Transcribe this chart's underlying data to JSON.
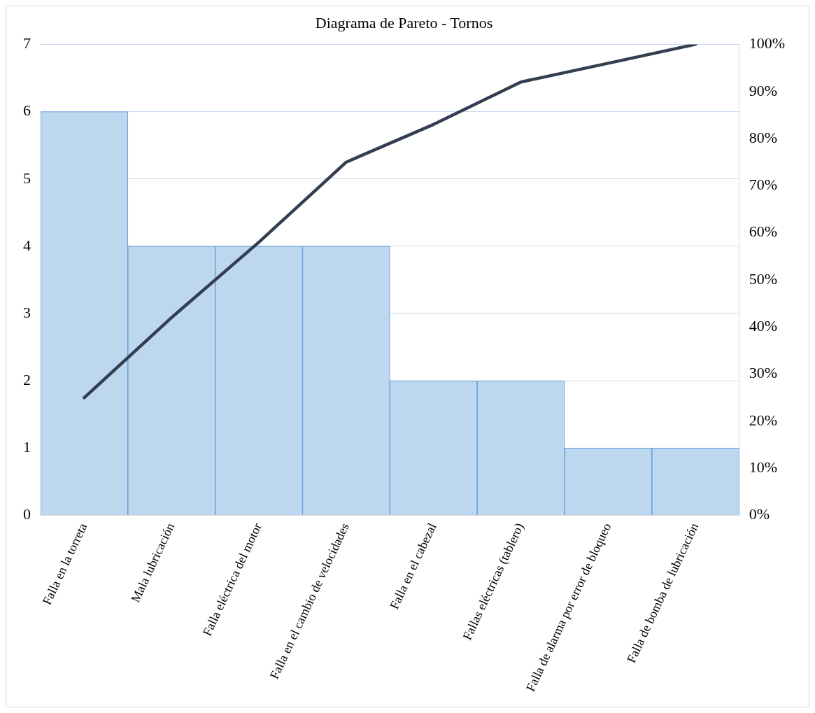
{
  "chart_data": {
    "type": "bar",
    "title": "Diagrama de Pareto - Tornos",
    "categories": [
      "Falla en la torreta",
      "Mala lubricación",
      "Falla eléctrica del motor",
      "Falla en el cambio de velocidades",
      "Falla en el cabezal",
      "Fallas eléctricas (tablero)",
      "Falla de alarma por error de bloqueo",
      "Falla de bomba de lubricación"
    ],
    "series": [
      {
        "color": "#bdd7ee",
        "values": [
          6,
          4,
          4,
          4,
          2,
          2,
          1,
          1
        ]
      },
      {
        "type": "line",
        "axis": "y2",
        "color": "#333f50",
        "values": [
          25,
          42,
          58,
          75,
          83,
          92,
          96,
          100
        ]
      }
    ],
    "ylim": [
      0,
      7
    ],
    "yticks": [
      0,
      1,
      2,
      3,
      4,
      5,
      6,
      7
    ],
    "y2lim": [
      0,
      100
    ],
    "y2ticks": [
      {
        "value": 0,
        "label": "0%"
      },
      {
        "value": 10,
        "label": "10%"
      },
      {
        "value": 20,
        "label": "20%"
      },
      {
        "value": 30,
        "label": "30%"
      },
      {
        "value": 40,
        "label": "40%"
      },
      {
        "value": 50,
        "label": "50%"
      },
      {
        "value": 60,
        "label": "60%"
      },
      {
        "value": 70,
        "label": "70%"
      },
      {
        "value": 80,
        "label": "80%"
      },
      {
        "value": 90,
        "label": "90%"
      },
      {
        "value": 100,
        "label": "100%"
      }
    ],
    "grid": "y",
    "legend": false,
    "marker": "none",
    "line_style": "solid"
  }
}
